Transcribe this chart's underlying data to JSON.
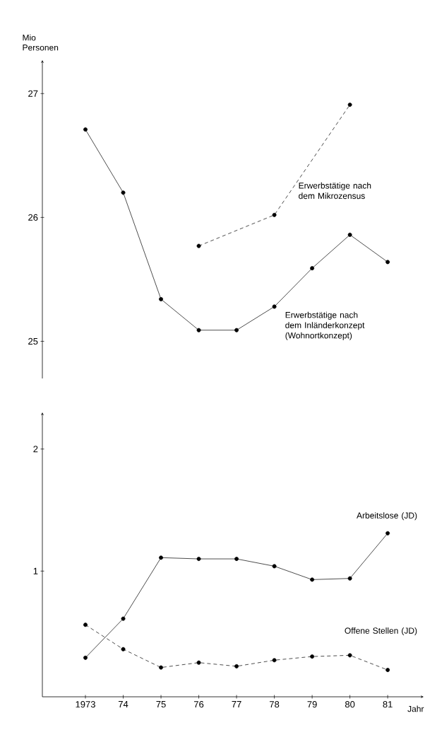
{
  "chart_data": [
    {
      "type": "line",
      "ylabel": "Mio Personen",
      "categories": [
        null,
        null,
        null,
        null,
        null,
        null,
        null,
        null,
        null
      ],
      "ylim": [
        24.7,
        27.27
      ],
      "yticks": [
        25,
        26,
        27
      ],
      "tick_labels": "y",
      "marker": "circle",
      "grid": false,
      "legend": false,
      "series": [
        {
          "name": "Erwerbstätige nach dem Mikrozensus",
          "color": "#000000",
          "line_style": "dashed",
          "values": [
            null,
            null,
            null,
            25.77,
            null,
            26.02,
            null,
            26.91,
            null
          ]
        },
        {
          "name": "Erwerbstätige nach dem Inländerkonzept (Wohnortkonzept)",
          "color": "#000000",
          "line_style": "solid",
          "values": [
            26.71,
            26.2,
            25.34,
            25.09,
            25.09,
            25.28,
            25.59,
            25.86,
            25.64
          ]
        }
      ]
    },
    {
      "type": "line",
      "xlabel": "Jahr",
      "categories": [
        "1973",
        "74",
        "75",
        "76",
        "77",
        "78",
        "79",
        "80",
        "81"
      ],
      "ylim": [
        -0.03,
        2.3
      ],
      "yticks": [
        1,
        2
      ],
      "marker": "circle",
      "grid": false,
      "legend": false,
      "series": [
        {
          "name": "Arbeitslose (JD)",
          "color": "#000000",
          "line_style": "solid",
          "values": [
            0.29,
            0.61,
            1.11,
            1.1,
            1.1,
            1.04,
            0.93,
            0.94,
            1.31
          ]
        },
        {
          "name": "Offene Stellen (JD)",
          "color": "#000000",
          "line_style": "dashed",
          "values": [
            0.56,
            0.36,
            0.21,
            0.25,
            0.22,
            0.27,
            0.3,
            0.31,
            0.19
          ]
        }
      ]
    }
  ]
}
